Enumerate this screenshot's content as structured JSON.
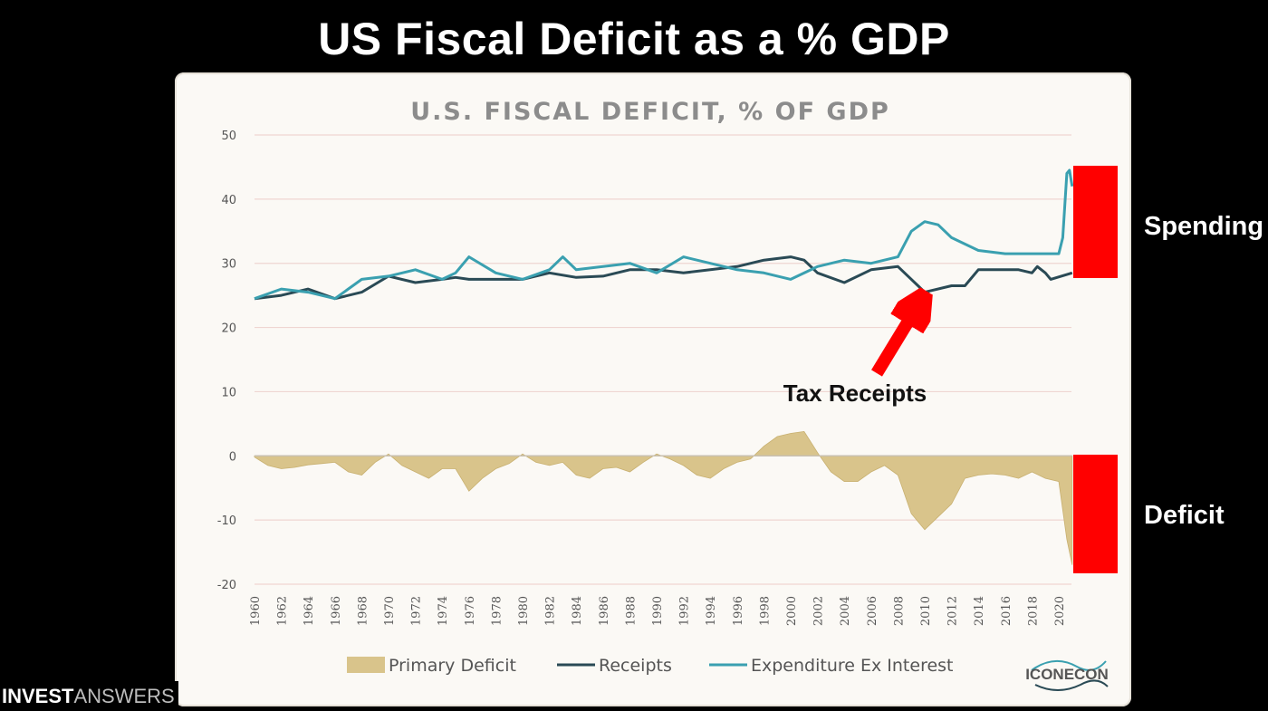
{
  "slide": {
    "title": "US Fiscal Deficit as a % GDP",
    "spending_label": "Spending",
    "deficit_label": "Deficit",
    "annotation": "Tax Receipts",
    "brand_bold": "INVEST",
    "brand_light": "ANSWERS",
    "marker_color": "#ff0000"
  },
  "chart_data": {
    "type": "line",
    "title": "U.S. FISCAL DEFICIT, % OF GDP",
    "xlabel": "",
    "ylabel": "",
    "ylim": [
      -20,
      50
    ],
    "yticks": [
      50,
      40,
      30,
      20,
      10,
      0,
      -10,
      -20
    ],
    "xticks": [
      "1960",
      "1962",
      "1964",
      "1966",
      "1968",
      "1970",
      "1972",
      "1974",
      "1976",
      "1978",
      "1980",
      "1982",
      "1984",
      "1986",
      "1988",
      "1990",
      "1992",
      "1994",
      "1996",
      "1998",
      "2000",
      "2002",
      "2004",
      "2006",
      "2008",
      "2010",
      "2012",
      "2014",
      "2016",
      "2018",
      "2020"
    ],
    "grid": true,
    "legend_position": "bottom",
    "watermark": "ICONECON",
    "colors": {
      "primary_deficit": "#d9c48b",
      "receipts": "#2a4a55",
      "expenditure": "#3aa0b0",
      "grid": "#efd6d2",
      "title": "#8c8c8c"
    },
    "series": [
      {
        "name": "Primary Deficit",
        "kind": "area",
        "points": [
          [
            1960,
            -0.2
          ],
          [
            1961,
            -1.5
          ],
          [
            1962,
            -2
          ],
          [
            1963,
            -1.8
          ],
          [
            1964,
            -1.4
          ],
          [
            1965,
            -1.2
          ],
          [
            1966,
            -1
          ],
          [
            1967,
            -2.5
          ],
          [
            1968,
            -3
          ],
          [
            1969,
            -1
          ],
          [
            1970,
            0.3
          ],
          [
            1971,
            -1.5
          ],
          [
            1972,
            -2.5
          ],
          [
            1973,
            -3.5
          ],
          [
            1974,
            -2
          ],
          [
            1975,
            -2
          ],
          [
            1976,
            -5.5
          ],
          [
            1977,
            -3.5
          ],
          [
            1978,
            -2
          ],
          [
            1979,
            -1.2
          ],
          [
            1980,
            0.3
          ],
          [
            1981,
            -1
          ],
          [
            1982,
            -1.5
          ],
          [
            1983,
            -1
          ],
          [
            1984,
            -3
          ],
          [
            1985,
            -3.5
          ],
          [
            1986,
            -2
          ],
          [
            1987,
            -1.8
          ],
          [
            1988,
            -2.5
          ],
          [
            1989,
            -1
          ],
          [
            1990,
            0.3
          ],
          [
            1991,
            -0.5
          ],
          [
            1992,
            -1.5
          ],
          [
            1993,
            -3
          ],
          [
            1994,
            -3.5
          ],
          [
            1995,
            -2
          ],
          [
            1996,
            -1
          ],
          [
            1997,
            -0.5
          ],
          [
            1998,
            1.5
          ],
          [
            1999,
            3
          ],
          [
            2000,
            3.5
          ],
          [
            2001,
            3.8
          ],
          [
            2002,
            0.5
          ],
          [
            2003,
            -2.5
          ],
          [
            2004,
            -4
          ],
          [
            2005,
            -4
          ],
          [
            2006,
            -2.5
          ],
          [
            2007,
            -1.5
          ],
          [
            2008,
            -3
          ],
          [
            2009,
            -9
          ],
          [
            2010,
            -11.5
          ],
          [
            2011,
            -9.5
          ],
          [
            2012,
            -7.5
          ],
          [
            2013,
            -3.5
          ],
          [
            2014,
            -3
          ],
          [
            2015,
            -2.8
          ],
          [
            2016,
            -3
          ],
          [
            2017,
            -3.5
          ],
          [
            2018,
            -2.5
          ],
          [
            2019,
            -3.5
          ],
          [
            2020,
            -4
          ],
          [
            2020.6,
            -13
          ],
          [
            2021,
            -17
          ]
        ]
      },
      {
        "name": "Receipts",
        "kind": "line",
        "points": [
          [
            1960,
            24.5
          ],
          [
            1962,
            25
          ],
          [
            1964,
            26
          ],
          [
            1966,
            24.5
          ],
          [
            1968,
            25.5
          ],
          [
            1970,
            28
          ],
          [
            1972,
            27
          ],
          [
            1974,
            27.5
          ],
          [
            1975,
            27.8
          ],
          [
            1976,
            27.5
          ],
          [
            1978,
            27.5
          ],
          [
            1980,
            27.5
          ],
          [
            1982,
            28.5
          ],
          [
            1984,
            27.8
          ],
          [
            1986,
            28
          ],
          [
            1988,
            29
          ],
          [
            1990,
            29
          ],
          [
            1992,
            28.5
          ],
          [
            1994,
            29
          ],
          [
            1996,
            29.5
          ],
          [
            1998,
            30.5
          ],
          [
            2000,
            31
          ],
          [
            2001,
            30.5
          ],
          [
            2002,
            28.5
          ],
          [
            2004,
            27
          ],
          [
            2006,
            29
          ],
          [
            2008,
            29.5
          ],
          [
            2009,
            27.5
          ],
          [
            2010,
            25.5
          ],
          [
            2012,
            26.5
          ],
          [
            2013,
            26.5
          ],
          [
            2014,
            29
          ],
          [
            2016,
            29
          ],
          [
            2017,
            29
          ],
          [
            2018,
            28.5
          ],
          [
            2018.4,
            29.5
          ],
          [
            2019,
            28.5
          ],
          [
            2019.4,
            27.5
          ],
          [
            2021,
            28.5
          ]
        ]
      },
      {
        "name": "Expenditure Ex Interest",
        "kind": "line",
        "points": [
          [
            1960,
            24.5
          ],
          [
            1962,
            26
          ],
          [
            1964,
            25.5
          ],
          [
            1966,
            24.5
          ],
          [
            1968,
            27.5
          ],
          [
            1970,
            28
          ],
          [
            1972,
            29
          ],
          [
            1974,
            27.5
          ],
          [
            1975,
            28.5
          ],
          [
            1976,
            31
          ],
          [
            1978,
            28.5
          ],
          [
            1980,
            27.5
          ],
          [
            1982,
            29
          ],
          [
            1983,
            31
          ],
          [
            1984,
            29
          ],
          [
            1986,
            29.5
          ],
          [
            1988,
            30
          ],
          [
            1990,
            28.5
          ],
          [
            1992,
            31
          ],
          [
            1994,
            30
          ],
          [
            1996,
            29
          ],
          [
            1998,
            28.5
          ],
          [
            2000,
            27.5
          ],
          [
            2002,
            29.5
          ],
          [
            2004,
            30.5
          ],
          [
            2006,
            30
          ],
          [
            2008,
            31
          ],
          [
            2009,
            35
          ],
          [
            2010,
            36.5
          ],
          [
            2011,
            36
          ],
          [
            2012,
            34
          ],
          [
            2014,
            32
          ],
          [
            2016,
            31.5
          ],
          [
            2018,
            31.5
          ],
          [
            2020,
            31.5
          ],
          [
            2020.3,
            34
          ],
          [
            2020.6,
            44
          ],
          [
            2020.8,
            44.5
          ],
          [
            2021,
            42
          ]
        ]
      }
    ]
  }
}
